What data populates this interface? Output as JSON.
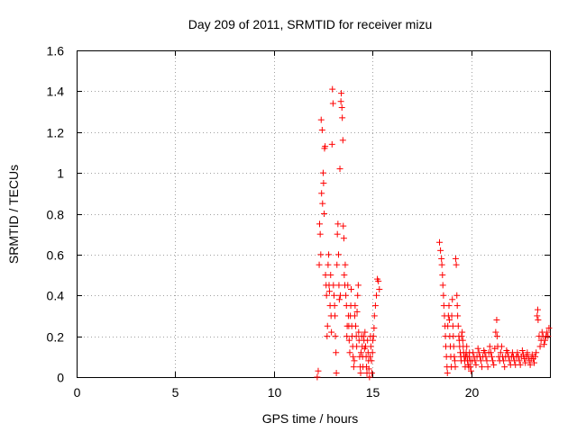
{
  "chart_data": {
    "type": "scatter",
    "title": "Day 209 of 2011, SRMTID for receiver mizu",
    "xlabel": "GPS time / hours",
    "ylabel": "SRMTID / TECUs",
    "xlim": [
      0,
      24
    ],
    "ylim": [
      0,
      1.6
    ],
    "xticks": [
      0,
      5,
      10,
      15,
      20
    ],
    "yticks": [
      0,
      0.2,
      0.4,
      0.6,
      0.8,
      1,
      1.2,
      1.4,
      1.6
    ],
    "xtick_labels": [
      "0",
      "5",
      "10",
      "15",
      "20"
    ],
    "ytick_labels": [
      "0",
      "0.2",
      "0.4",
      "0.6",
      "0.8",
      "1",
      "1.2",
      "1.4",
      "1.6"
    ],
    "grid": true,
    "marker": "+",
    "color": "#ff0000",
    "series": [
      {
        "name": "SRMTID",
        "points": [
          [
            12.2,
            0.0
          ],
          [
            12.25,
            0.03
          ],
          [
            12.3,
            0.55
          ],
          [
            12.32,
            0.75
          ],
          [
            12.35,
            0.7
          ],
          [
            12.38,
            0.6
          ],
          [
            12.4,
            1.26
          ],
          [
            12.42,
            0.9
          ],
          [
            12.45,
            1.21
          ],
          [
            12.47,
            0.85
          ],
          [
            12.5,
            1.0
          ],
          [
            12.52,
            0.95
          ],
          [
            12.55,
            0.8
          ],
          [
            12.57,
            1.12
          ],
          [
            12.6,
            1.13
          ],
          [
            12.62,
            0.5
          ],
          [
            12.65,
            0.45
          ],
          [
            12.67,
            0.4
          ],
          [
            12.7,
            0.2
          ],
          [
            12.72,
            0.25
          ],
          [
            12.75,
            0.55
          ],
          [
            12.78,
            0.6
          ],
          [
            12.8,
            0.45
          ],
          [
            12.82,
            0.42
          ],
          [
            12.85,
            0.35
          ],
          [
            12.88,
            0.5
          ],
          [
            12.9,
            0.3
          ],
          [
            12.92,
            0.22
          ],
          [
            12.95,
            1.14
          ],
          [
            12.97,
            1.41
          ],
          [
            13.0,
            1.34
          ],
          [
            13.02,
            0.45
          ],
          [
            13.05,
            0.4
          ],
          [
            13.08,
            0.35
          ],
          [
            13.1,
            0.3
          ],
          [
            13.12,
            0.2
          ],
          [
            13.15,
            0.12
          ],
          [
            13.17,
            0.02
          ],
          [
            13.2,
            0.55
          ],
          [
            13.22,
            0.7
          ],
          [
            13.25,
            0.75
          ],
          [
            13.28,
            0.6
          ],
          [
            13.3,
            0.45
          ],
          [
            13.32,
            0.38
          ],
          [
            13.35,
            1.02
          ],
          [
            13.37,
            0.4
          ],
          [
            13.4,
            1.35
          ],
          [
            13.42,
            1.39
          ],
          [
            13.45,
            1.32
          ],
          [
            13.47,
            1.27
          ],
          [
            13.5,
            1.16
          ],
          [
            13.52,
            0.74
          ],
          [
            13.55,
            0.68
          ],
          [
            13.57,
            0.5
          ],
          [
            13.6,
            0.45
          ],
          [
            13.62,
            0.55
          ],
          [
            13.65,
            0.4
          ],
          [
            13.68,
            0.35
          ],
          [
            13.7,
            0.2
          ],
          [
            13.72,
            0.25
          ],
          [
            13.75,
            0.45
          ],
          [
            13.78,
            0.3
          ],
          [
            13.8,
            0.25
          ],
          [
            13.82,
            0.18
          ],
          [
            13.85,
            0.12
          ],
          [
            13.88,
            0.3
          ],
          [
            13.9,
            0.35
          ],
          [
            13.92,
            0.43
          ],
          [
            13.95,
            0.25
          ],
          [
            13.97,
            0.2
          ],
          [
            14.0,
            0.15
          ],
          [
            14.02,
            0.1
          ],
          [
            14.05,
            0.05
          ],
          [
            14.08,
            0.08
          ],
          [
            14.1,
            0.3
          ],
          [
            14.12,
            0.35
          ],
          [
            14.15,
            0.25
          ],
          [
            14.18,
            0.2
          ],
          [
            14.2,
            0.15
          ],
          [
            14.22,
            0.32
          ],
          [
            14.25,
            0.4
          ],
          [
            14.28,
            0.45
          ],
          [
            14.3,
            0.22
          ],
          [
            14.32,
            0.18
          ],
          [
            14.35,
            0.1
          ],
          [
            14.38,
            0.05
          ],
          [
            14.4,
            0.02
          ],
          [
            14.42,
            0.12
          ],
          [
            14.45,
            0.2
          ],
          [
            14.48,
            0.15
          ],
          [
            14.5,
            0.1
          ],
          [
            14.52,
            0.05
          ],
          [
            14.55,
            0.2
          ],
          [
            14.57,
            0.18
          ],
          [
            14.6,
            0.14
          ],
          [
            14.62,
            0.22
          ],
          [
            14.65,
            0.15
          ],
          [
            14.68,
            0.1
          ],
          [
            14.7,
            0.05
          ],
          [
            14.72,
            0.02
          ],
          [
            14.75,
            0.18
          ],
          [
            14.78,
            0.12
          ],
          [
            14.8,
            0.08
          ],
          [
            14.82,
            0.04
          ],
          [
            14.85,
            0.0
          ],
          [
            14.88,
            0.1
          ],
          [
            14.9,
            0.2
          ],
          [
            14.92,
            0.15
          ],
          [
            14.95,
            0.08
          ],
          [
            14.97,
            0.02
          ],
          [
            15.0,
            0.12
          ],
          [
            15.02,
            0.18
          ],
          [
            15.05,
            0.2
          ],
          [
            15.08,
            0.24
          ],
          [
            15.1,
            0.3
          ],
          [
            15.15,
            0.35
          ],
          [
            15.2,
            0.4
          ],
          [
            15.25,
            0.48
          ],
          [
            15.3,
            0.47
          ],
          [
            15.35,
            0.43
          ],
          [
            18.4,
            0.66
          ],
          [
            18.45,
            0.62
          ],
          [
            18.5,
            0.58
          ],
          [
            18.52,
            0.55
          ],
          [
            18.55,
            0.5
          ],
          [
            18.57,
            0.45
          ],
          [
            18.6,
            0.4
          ],
          [
            18.62,
            0.35
          ],
          [
            18.65,
            0.3
          ],
          [
            18.68,
            0.25
          ],
          [
            18.7,
            0.2
          ],
          [
            18.72,
            0.15
          ],
          [
            18.75,
            0.1
          ],
          [
            18.78,
            0.05
          ],
          [
            18.8,
            0.02
          ],
          [
            18.82,
            0.25
          ],
          [
            18.85,
            0.3
          ],
          [
            18.88,
            0.35
          ],
          [
            18.9,
            0.28
          ],
          [
            18.92,
            0.2
          ],
          [
            18.95,
            0.15
          ],
          [
            18.97,
            0.1
          ],
          [
            19.0,
            0.05
          ],
          [
            19.02,
            0.3
          ],
          [
            19.05,
            0.38
          ],
          [
            19.08,
            0.25
          ],
          [
            19.1,
            0.2
          ],
          [
            19.12,
            0.15
          ],
          [
            19.15,
            0.1
          ],
          [
            19.18,
            0.08
          ],
          [
            19.2,
            0.05
          ],
          [
            19.22,
            0.58
          ],
          [
            19.25,
            0.55
          ],
          [
            19.28,
            0.4
          ],
          [
            19.3,
            0.35
          ],
          [
            19.32,
            0.3
          ],
          [
            19.35,
            0.25
          ],
          [
            19.38,
            0.2
          ],
          [
            19.4,
            0.18
          ],
          [
            19.42,
            0.15
          ],
          [
            19.45,
            0.12
          ],
          [
            19.48,
            0.1
          ],
          [
            19.5,
            0.08
          ],
          [
            19.52,
            0.2
          ],
          [
            19.55,
            0.22
          ],
          [
            19.58,
            0.18
          ],
          [
            19.6,
            0.15
          ],
          [
            19.62,
            0.12
          ],
          [
            19.65,
            0.1
          ],
          [
            19.68,
            0.08
          ],
          [
            19.7,
            0.05
          ],
          [
            19.72,
            0.1
          ],
          [
            19.75,
            0.12
          ],
          [
            19.78,
            0.15
          ],
          [
            19.8,
            0.1
          ],
          [
            19.82,
            0.08
          ],
          [
            19.85,
            0.06
          ],
          [
            19.88,
            0.05
          ],
          [
            19.9,
            0.1
          ],
          [
            19.92,
            0.12
          ],
          [
            19.95,
            0.08
          ],
          [
            19.97,
            0.05
          ],
          [
            20.0,
            0.03
          ],
          [
            20.05,
            0.08
          ],
          [
            20.1,
            0.12
          ],
          [
            20.15,
            0.1
          ],
          [
            20.2,
            0.08
          ],
          [
            20.25,
            0.06
          ],
          [
            20.3,
            0.1
          ],
          [
            20.35,
            0.14
          ],
          [
            20.4,
            0.12
          ],
          [
            20.45,
            0.1
          ],
          [
            20.5,
            0.08
          ],
          [
            20.55,
            0.05
          ],
          [
            20.6,
            0.1
          ],
          [
            20.65,
            0.13
          ],
          [
            20.7,
            0.12
          ],
          [
            20.75,
            0.1
          ],
          [
            20.8,
            0.08
          ],
          [
            20.85,
            0.05
          ],
          [
            20.9,
            0.12
          ],
          [
            20.95,
            0.15
          ],
          [
            21.0,
            0.12
          ],
          [
            21.05,
            0.1
          ],
          [
            21.1,
            0.08
          ],
          [
            21.15,
            0.06
          ],
          [
            21.2,
            0.14
          ],
          [
            21.25,
            0.22
          ],
          [
            21.3,
            0.28
          ],
          [
            21.32,
            0.2
          ],
          [
            21.35,
            0.15
          ],
          [
            21.4,
            0.1
          ],
          [
            21.45,
            0.08
          ],
          [
            21.5,
            0.12
          ],
          [
            21.55,
            0.15
          ],
          [
            21.6,
            0.1
          ],
          [
            21.65,
            0.08
          ],
          [
            21.7,
            0.05
          ],
          [
            21.75,
            0.1
          ],
          [
            21.8,
            0.13
          ],
          [
            21.85,
            0.12
          ],
          [
            21.9,
            0.1
          ],
          [
            21.95,
            0.08
          ],
          [
            22.0,
            0.06
          ],
          [
            22.05,
            0.1
          ],
          [
            22.1,
            0.12
          ],
          [
            22.15,
            0.1
          ],
          [
            22.2,
            0.08
          ],
          [
            22.25,
            0.06
          ],
          [
            22.3,
            0.1
          ],
          [
            22.35,
            0.12
          ],
          [
            22.4,
            0.1
          ],
          [
            22.45,
            0.08
          ],
          [
            22.5,
            0.06
          ],
          [
            22.55,
            0.1
          ],
          [
            22.6,
            0.13
          ],
          [
            22.65,
            0.11
          ],
          [
            22.7,
            0.09
          ],
          [
            22.75,
            0.07
          ],
          [
            22.8,
            0.1
          ],
          [
            22.85,
            0.12
          ],
          [
            22.9,
            0.1
          ],
          [
            22.95,
            0.08
          ],
          [
            23.0,
            0.06
          ],
          [
            23.05,
            0.09
          ],
          [
            23.1,
            0.11
          ],
          [
            23.15,
            0.09
          ],
          [
            23.2,
            0.07
          ],
          [
            23.25,
            0.1
          ],
          [
            23.3,
            0.12
          ],
          [
            23.35,
            0.3
          ],
          [
            23.38,
            0.33
          ],
          [
            23.4,
            0.28
          ],
          [
            23.45,
            0.2
          ],
          [
            23.5,
            0.15
          ],
          [
            23.55,
            0.18
          ],
          [
            23.6,
            0.22
          ],
          [
            23.65,
            0.2
          ],
          [
            23.7,
            0.16
          ],
          [
            23.75,
            0.18
          ],
          [
            23.8,
            0.2
          ],
          [
            23.85,
            0.22
          ],
          [
            23.9,
            0.2
          ],
          [
            23.95,
            0.24
          ]
        ]
      }
    ]
  }
}
